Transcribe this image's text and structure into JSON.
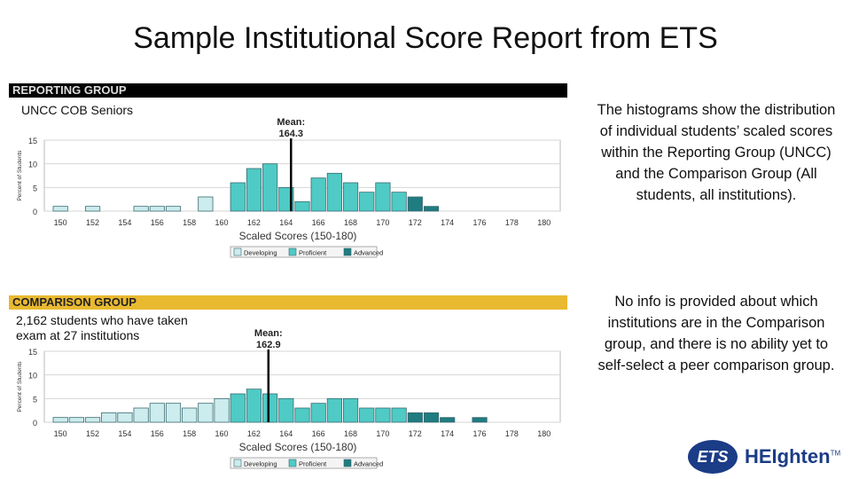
{
  "page_title": "Sample Institutional Score Report from ETS",
  "reporting": {
    "band_label": "REPORTING GROUP",
    "note": "UNCC COB Seniors"
  },
  "comparison": {
    "band_label": "COMPARISON GROUP",
    "note_line1": "2,162 students who have taken",
    "note_line2": "exam at 27 institutions"
  },
  "side_text": {
    "para1": "The histograms show the distribution of individual students’ scaled scores within the Reporting Group (UNCC) and the Comparison Group (All students, all institutions).",
    "para2": "No info is provided about which institutions are in the Comparison group, and there is no ability yet to self-select a peer comparison group."
  },
  "logo": {
    "ets": "ETS",
    "heighten": "HEIghten",
    "tm": "TM"
  },
  "colors": {
    "developing": "#ccecee",
    "proficient": "#4fcac5",
    "advanced": "#1f7c80",
    "mean_line": "#000000",
    "reporting_band": "#000000",
    "comparison_band": "#e9b930"
  },
  "chart_data": [
    {
      "type": "bar",
      "xlabel": "Scaled Scores (150-180)",
      "ylabel": "Percent of Students",
      "xlim": [
        149,
        181
      ],
      "ylim": [
        0,
        15
      ],
      "yticks": [
        0,
        5,
        10,
        15
      ],
      "xticks": [
        150,
        152,
        154,
        156,
        158,
        160,
        162,
        164,
        166,
        168,
        170,
        172,
        174,
        176,
        178,
        180
      ],
      "grid": true,
      "mean": 164.3,
      "mean_label": "Mean:",
      "mean_value_label": "164.3",
      "legend": [
        "Developing",
        "Proficient",
        "Advanced"
      ],
      "legend_position": "bottom",
      "bars": [
        {
          "x": 150,
          "value": 1,
          "level": "Developing"
        },
        {
          "x": 152,
          "value": 1,
          "level": "Developing"
        },
        {
          "x": 155,
          "value": 1,
          "level": "Developing"
        },
        {
          "x": 156,
          "value": 1,
          "level": "Developing"
        },
        {
          "x": 157,
          "value": 1,
          "level": "Developing"
        },
        {
          "x": 159,
          "value": 3,
          "level": "Developing"
        },
        {
          "x": 161,
          "value": 6,
          "level": "Proficient"
        },
        {
          "x": 162,
          "value": 9,
          "level": "Proficient"
        },
        {
          "x": 163,
          "value": 10,
          "level": "Proficient"
        },
        {
          "x": 164,
          "value": 5,
          "level": "Proficient"
        },
        {
          "x": 165,
          "value": 2,
          "level": "Proficient"
        },
        {
          "x": 166,
          "value": 7,
          "level": "Proficient"
        },
        {
          "x": 167,
          "value": 8,
          "level": "Proficient"
        },
        {
          "x": 168,
          "value": 6,
          "level": "Proficient"
        },
        {
          "x": 169,
          "value": 4,
          "level": "Proficient"
        },
        {
          "x": 170,
          "value": 6,
          "level": "Proficient"
        },
        {
          "x": 171,
          "value": 4,
          "level": "Proficient"
        },
        {
          "x": 172,
          "value": 3,
          "level": "Advanced"
        },
        {
          "x": 173,
          "value": 1,
          "level": "Advanced"
        }
      ]
    },
    {
      "type": "bar",
      "xlabel": "Scaled Scores (150-180)",
      "ylabel": "Percent of Students",
      "xlim": [
        149,
        181
      ],
      "ylim": [
        0,
        15
      ],
      "yticks": [
        0,
        5,
        10,
        15
      ],
      "xticks": [
        150,
        152,
        154,
        156,
        158,
        160,
        162,
        164,
        166,
        168,
        170,
        172,
        174,
        176,
        178,
        180
      ],
      "grid": true,
      "mean": 162.9,
      "mean_label": "Mean:",
      "mean_value_label": "162.9",
      "legend": [
        "Developing",
        "Proficient",
        "Advanced"
      ],
      "legend_position": "bottom",
      "bars": [
        {
          "x": 150,
          "value": 1,
          "level": "Developing"
        },
        {
          "x": 151,
          "value": 1,
          "level": "Developing"
        },
        {
          "x": 152,
          "value": 1,
          "level": "Developing"
        },
        {
          "x": 153,
          "value": 2,
          "level": "Developing"
        },
        {
          "x": 154,
          "value": 2,
          "level": "Developing"
        },
        {
          "x": 155,
          "value": 3,
          "level": "Developing"
        },
        {
          "x": 156,
          "value": 4,
          "level": "Developing"
        },
        {
          "x": 157,
          "value": 4,
          "level": "Developing"
        },
        {
          "x": 158,
          "value": 3,
          "level": "Developing"
        },
        {
          "x": 159,
          "value": 4,
          "level": "Developing"
        },
        {
          "x": 160,
          "value": 5,
          "level": "Developing"
        },
        {
          "x": 161,
          "value": 6,
          "level": "Proficient"
        },
        {
          "x": 162,
          "value": 7,
          "level": "Proficient"
        },
        {
          "x": 163,
          "value": 6,
          "level": "Proficient"
        },
        {
          "x": 164,
          "value": 5,
          "level": "Proficient"
        },
        {
          "x": 165,
          "value": 3,
          "level": "Proficient"
        },
        {
          "x": 166,
          "value": 4,
          "level": "Proficient"
        },
        {
          "x": 167,
          "value": 5,
          "level": "Proficient"
        },
        {
          "x": 168,
          "value": 5,
          "level": "Proficient"
        },
        {
          "x": 169,
          "value": 3,
          "level": "Proficient"
        },
        {
          "x": 170,
          "value": 3,
          "level": "Proficient"
        },
        {
          "x": 171,
          "value": 3,
          "level": "Proficient"
        },
        {
          "x": 172,
          "value": 2,
          "level": "Advanced"
        },
        {
          "x": 173,
          "value": 2,
          "level": "Advanced"
        },
        {
          "x": 174,
          "value": 1,
          "level": "Advanced"
        },
        {
          "x": 176,
          "value": 1,
          "level": "Advanced"
        }
      ]
    }
  ]
}
